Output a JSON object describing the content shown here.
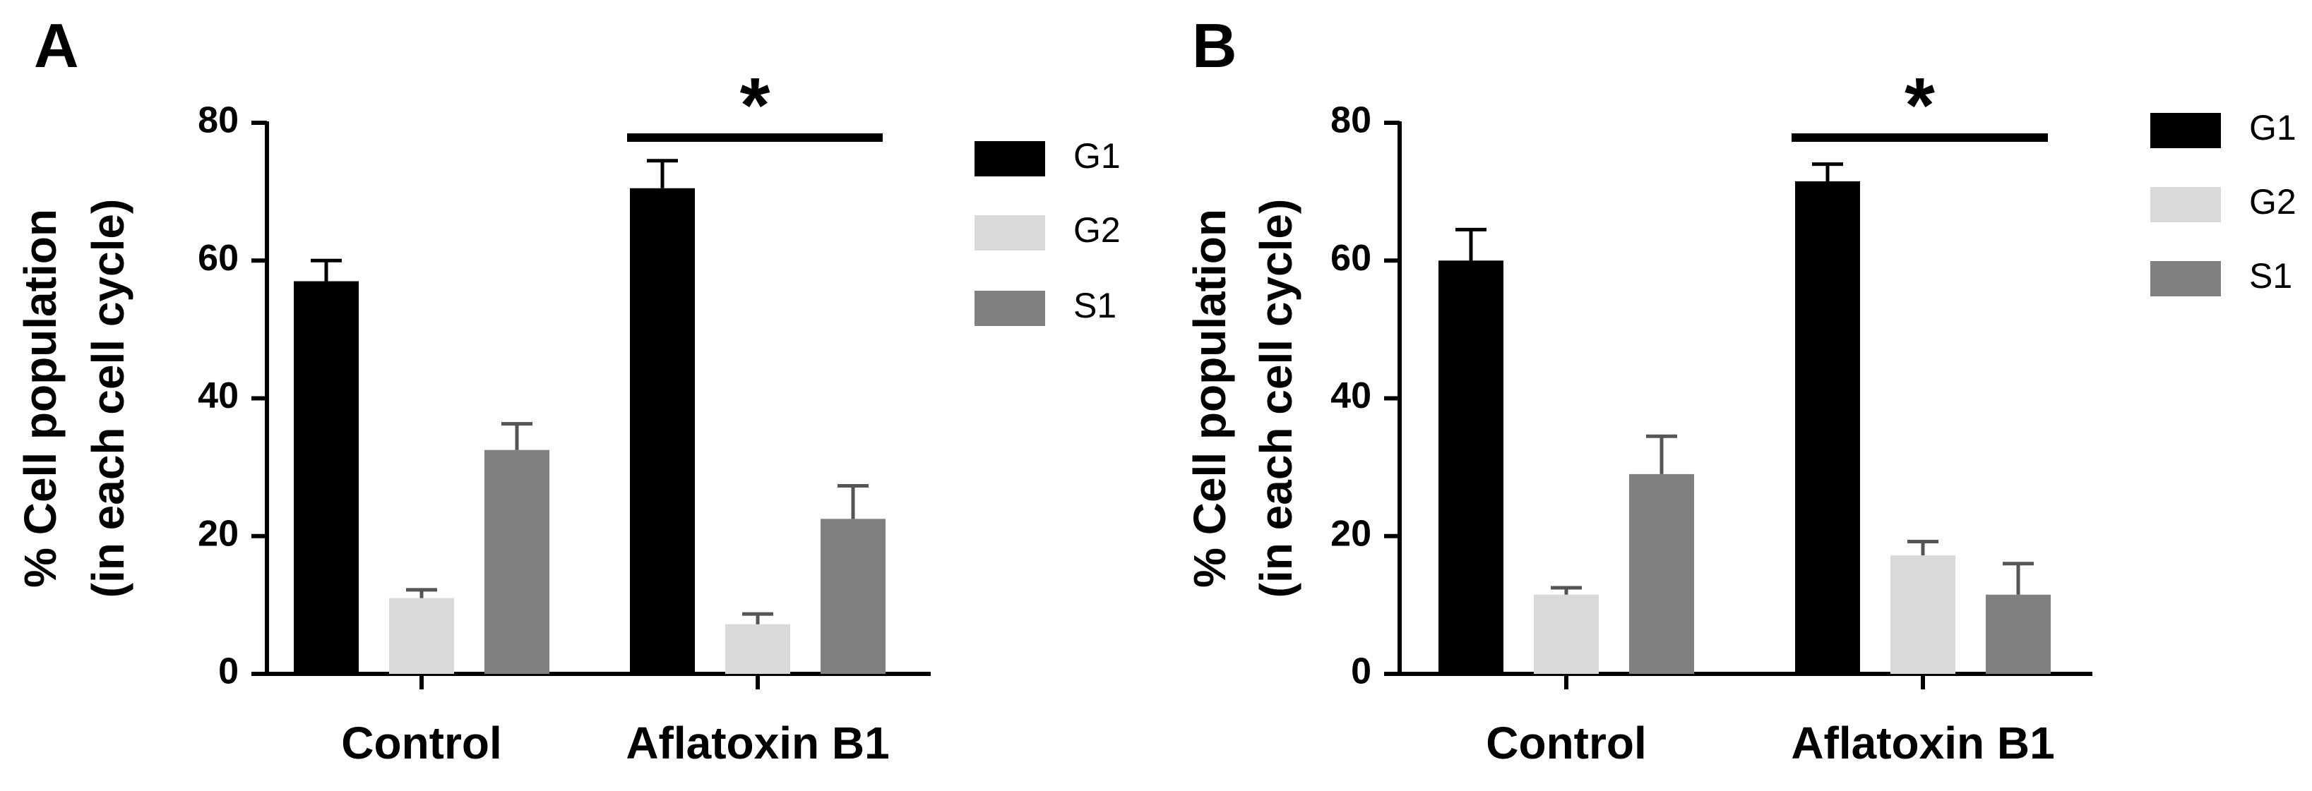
{
  "chart_data": [
    {
      "type": "bar",
      "panel_label": "A",
      "categories": [
        "Control",
        "Aflatoxin B1"
      ],
      "series": [
        {
          "name": "G1",
          "values": [
            57,
            70.5
          ],
          "errors": [
            3,
            4
          ],
          "color": "#000000"
        },
        {
          "name": "G2",
          "values": [
            11,
            7.2
          ],
          "errors": [
            1.2,
            1.5
          ],
          "color": "#d9d9d9"
        },
        {
          "name": "S1",
          "values": [
            32.5,
            22.5
          ],
          "errors": [
            3.8,
            4.8
          ],
          "color": "#808080"
        }
      ],
      "ylabel_line1": "% Cell population",
      "ylabel_line2": "(in each cell cycle)",
      "xlabel": "",
      "ylim": [
        0,
        80
      ],
      "yticks": [
        "0",
        "20",
        "40",
        "60",
        "80"
      ],
      "significance": {
        "label": "*",
        "over_category": "Aflatoxin B1"
      },
      "legend_position": "right",
      "grid": false
    },
    {
      "type": "bar",
      "panel_label": "B",
      "categories": [
        "Control",
        "Aflatoxin B1"
      ],
      "series": [
        {
          "name": "G1",
          "values": [
            60,
            71.5
          ],
          "errors": [
            4.5,
            2.5
          ],
          "color": "#000000"
        },
        {
          "name": "G2",
          "values": [
            11.5,
            17.2
          ],
          "errors": [
            1,
            2
          ],
          "color": "#d9d9d9"
        },
        {
          "name": "S1",
          "values": [
            29,
            11.5
          ],
          "errors": [
            5.5,
            4.5
          ],
          "color": "#808080"
        }
      ],
      "ylabel_line1": "% Cell population",
      "ylabel_line2": "(in each cell cycle)",
      "xlabel": "",
      "ylim": [
        0,
        80
      ],
      "yticks": [
        "0",
        "20",
        "40",
        "60",
        "80"
      ],
      "significance": {
        "label": "*",
        "over_category": "Aflatoxin B1"
      },
      "legend_position": "right",
      "grid": false
    }
  ]
}
